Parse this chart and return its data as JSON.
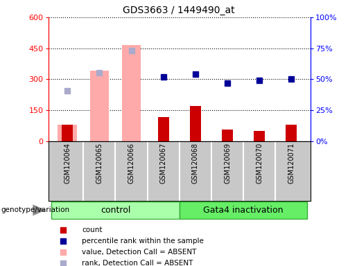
{
  "title": "GDS3663 / 1449490_at",
  "samples": [
    "GSM120064",
    "GSM120065",
    "GSM120066",
    "GSM120067",
    "GSM120068",
    "GSM120069",
    "GSM120070",
    "GSM120071"
  ],
  "count": [
    80,
    null,
    null,
    115,
    170,
    55,
    50,
    80
  ],
  "percentile_rank": [
    null,
    null,
    null,
    52,
    54,
    47,
    49,
    50
  ],
  "value_absent": [
    80,
    340,
    465,
    null,
    null,
    null,
    null,
    null
  ],
  "rank_absent": [
    245,
    330,
    440,
    null,
    null,
    null,
    null,
    null
  ],
  "ylim_left": [
    0,
    600
  ],
  "ylim_right": [
    0,
    100
  ],
  "yticks_left": [
    0,
    150,
    300,
    450,
    600
  ],
  "yticks_right": [
    0,
    25,
    50,
    75,
    100
  ],
  "ytick_labels_right": [
    "0%",
    "25%",
    "50%",
    "75%",
    "100%"
  ],
  "count_color": "#cc0000",
  "percentile_color": "#000099",
  "absent_value_color": "#ffaaaa",
  "absent_rank_color": "#aaaacc",
  "control_color": "#aaffaa",
  "gata_color": "#66ee66",
  "bg_color": "#c8c8c8",
  "legend_items": [
    {
      "label": "count",
      "color": "#cc0000"
    },
    {
      "label": "percentile rank within the sample",
      "color": "#000099"
    },
    {
      "label": "value, Detection Call = ABSENT",
      "color": "#ffaaaa"
    },
    {
      "label": "rank, Detection Call = ABSENT",
      "color": "#aaaacc"
    }
  ]
}
